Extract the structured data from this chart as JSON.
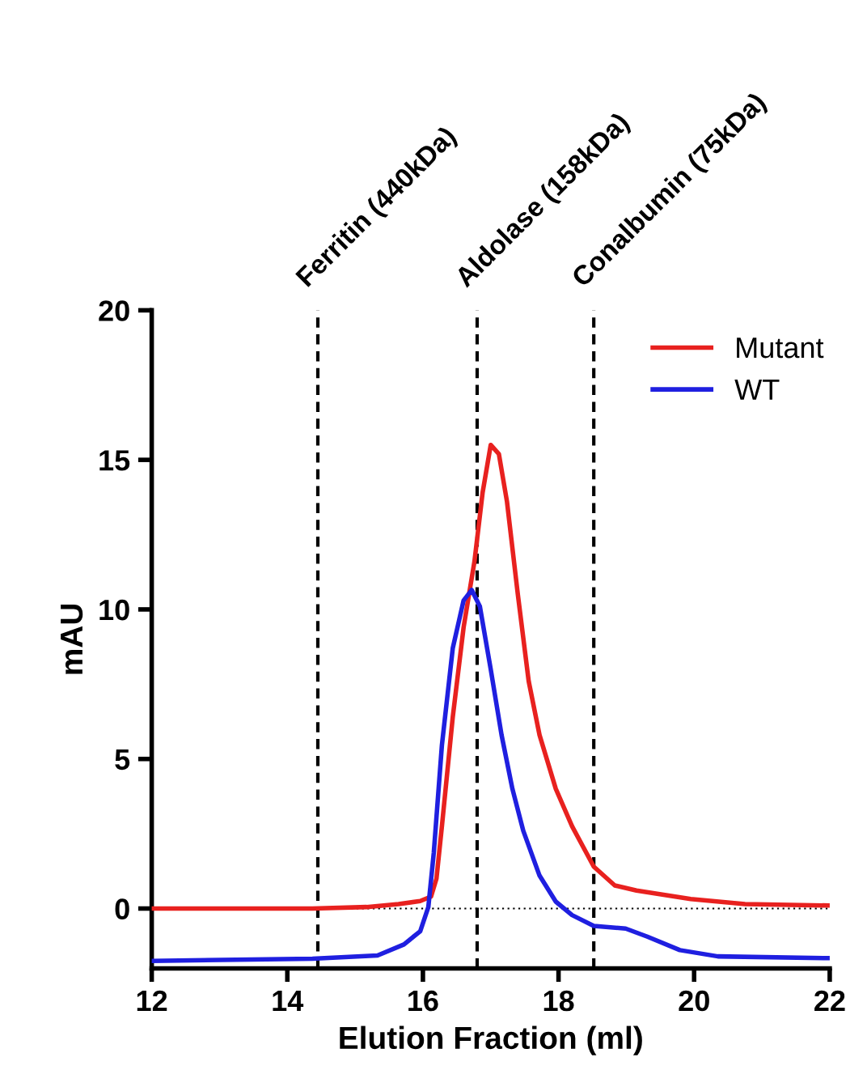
{
  "chart_data": {
    "type": "line",
    "xlabel": "Elution Fraction (ml)",
    "ylabel": "mAU",
    "xlim": [
      12,
      22
    ],
    "xticks": [
      12,
      14,
      16,
      18,
      20,
      22
    ],
    "ylim": [
      -2,
      20
    ],
    "yticks": [
      0,
      5,
      10,
      15,
      20
    ],
    "grid": false,
    "legend": "top right",
    "marker": "none",
    "line_style": "solid",
    "ref_lines": [
      {
        "axis": "x",
        "value": 14.45,
        "label": "Ferritin (440kDa)",
        "color": "#000000",
        "line_style": "dashed"
      },
      {
        "axis": "x",
        "value": 16.8,
        "label": "Aldolase (158kDa)",
        "color": "#000000",
        "line_style": "dashed"
      },
      {
        "axis": "x",
        "value": 18.52,
        "label": "Conalbumin (75kDa)",
        "color": "#000000",
        "line_style": "dashed"
      },
      {
        "axis": "y",
        "value": 0,
        "color": "#000000",
        "line_style": "dotted"
      }
    ],
    "series": [
      {
        "name": "Mutant",
        "color": "#e8211f",
        "x": [
          12,
          14.37,
          15.17,
          15.64,
          15.96,
          16.12,
          16.2,
          16.28,
          16.44,
          16.6,
          16.76,
          16.88,
          17.0,
          17.12,
          17.24,
          17.4,
          17.56,
          17.72,
          17.96,
          18.2,
          18.52,
          18.83,
          19.15,
          19.95,
          20.75,
          22
        ],
        "values": [
          0,
          0,
          0.05,
          0.15,
          0.25,
          0.4,
          1.0,
          2.75,
          6.4,
          9.4,
          11.6,
          13.9,
          15.5,
          15.2,
          13.6,
          10.5,
          7.6,
          5.8,
          4.0,
          2.75,
          1.4,
          0.77,
          0.6,
          0.32,
          0.15,
          0.1
        ]
      },
      {
        "name": "WT",
        "color": "#1f1fe0",
        "x": [
          12,
          14.37,
          15.33,
          15.72,
          15.96,
          16.08,
          16.16,
          16.28,
          16.44,
          16.6,
          16.72,
          16.84,
          17.0,
          17.16,
          17.32,
          17.48,
          17.72,
          17.96,
          18.2,
          18.52,
          18.99,
          19.31,
          19.79,
          20.35,
          22
        ],
        "values": [
          -1.75,
          -1.68,
          -1.57,
          -1.2,
          -0.76,
          0.05,
          1.86,
          5.46,
          8.7,
          10.3,
          10.65,
          10.1,
          8.0,
          5.8,
          4.0,
          2.6,
          1.1,
          0.23,
          -0.22,
          -0.58,
          -0.67,
          -0.94,
          -1.39,
          -1.6,
          -1.66
        ]
      }
    ]
  }
}
